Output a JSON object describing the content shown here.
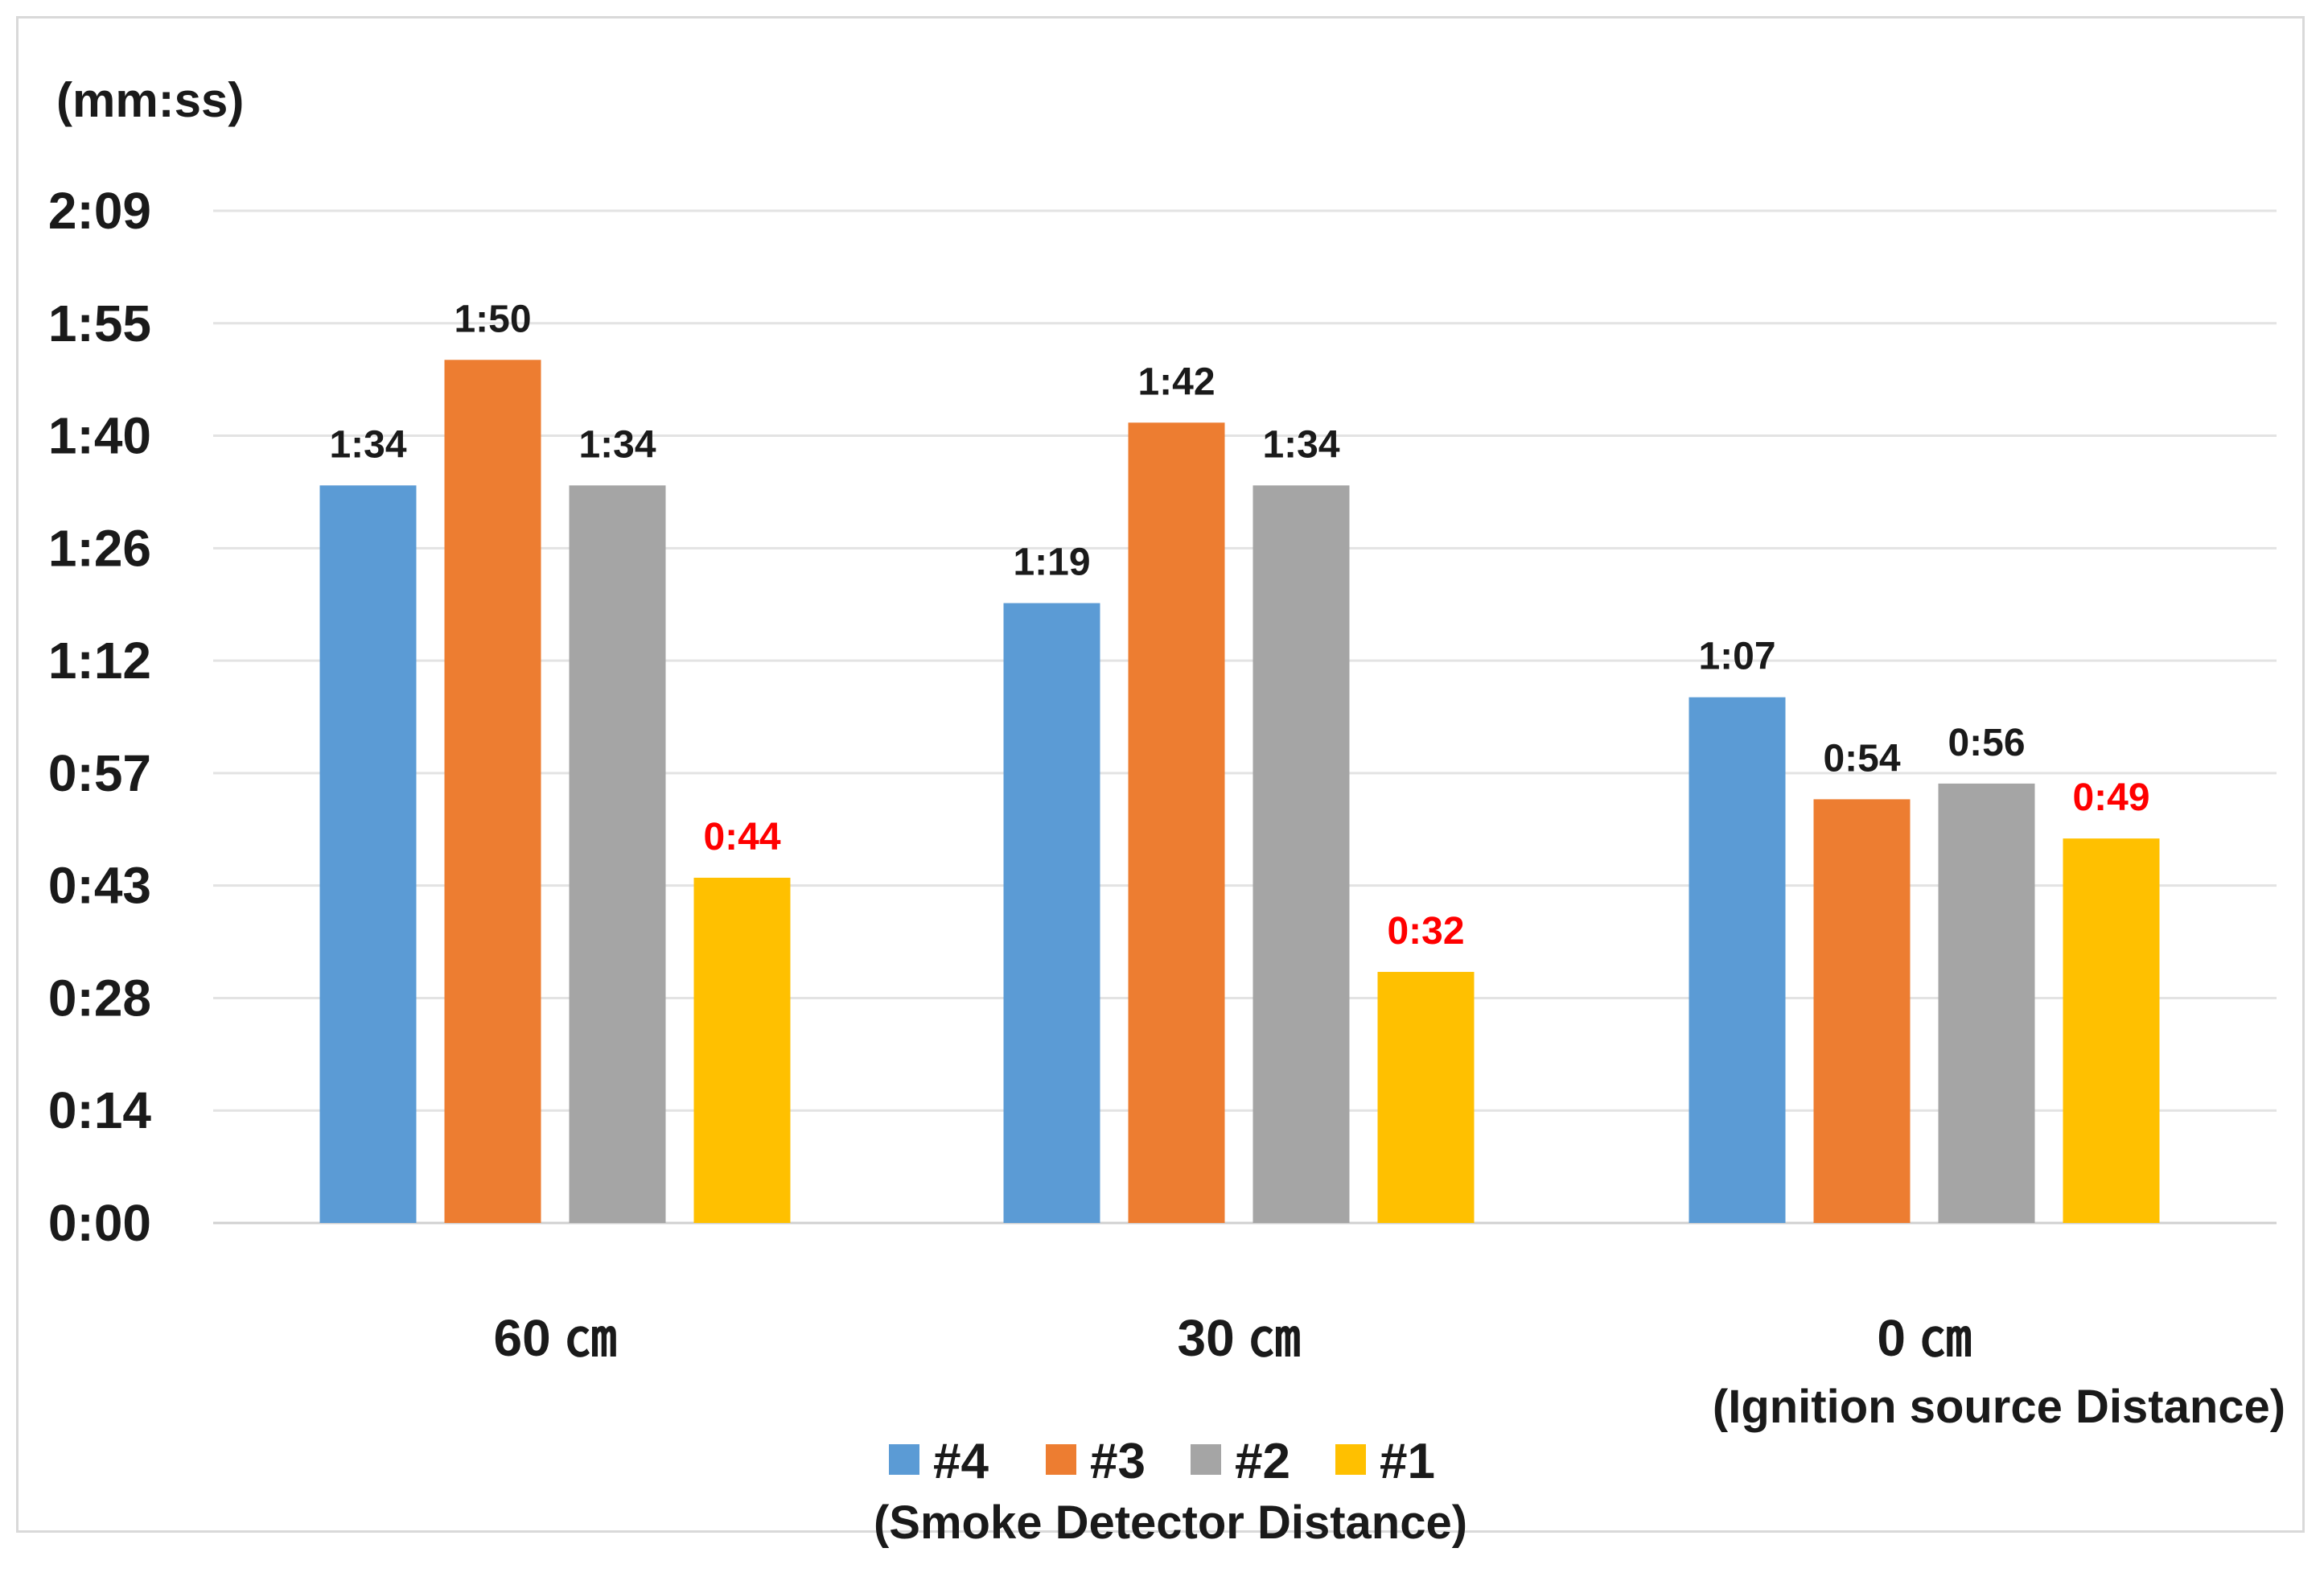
{
  "chart_data": {
    "type": "bar",
    "ylabel": "(mm:ss)",
    "y_ticks": [
      "0:00",
      "0:14",
      "0:28",
      "0:43",
      "0:57",
      "1:12",
      "1:26",
      "1:40",
      "1:55",
      "2:09"
    ],
    "ylim": [
      0,
      129
    ],
    "categories": [
      "60 ㎝",
      "30 ㎝",
      "0 ㎝"
    ],
    "x_note": "(Ignition source Distance)",
    "legend_title": "(Smoke Detector Distance)",
    "grid": true,
    "series": [
      {
        "name": "#4",
        "color": "#5b9bd5",
        "values": [
          94,
          79,
          67
        ],
        "labels": [
          "1:34",
          "1:19",
          "1:07"
        ],
        "label_color": "#1a1a1a"
      },
      {
        "name": "#3",
        "color": "#ed7d31",
        "values": [
          110,
          102,
          54
        ],
        "labels": [
          "1:50",
          "1:42",
          "0:54"
        ],
        "label_color": "#1a1a1a"
      },
      {
        "name": "#2",
        "color": "#a5a5a5",
        "values": [
          94,
          94,
          56
        ],
        "labels": [
          "1:34",
          "1:34",
          "0:56"
        ],
        "label_color": "#1a1a1a"
      },
      {
        "name": "#1",
        "color": "#ffc000",
        "values": [
          44,
          32,
          49
        ],
        "labels": [
          "0:44",
          "0:32",
          "0:49"
        ],
        "label_color": "#ff0000"
      }
    ]
  }
}
